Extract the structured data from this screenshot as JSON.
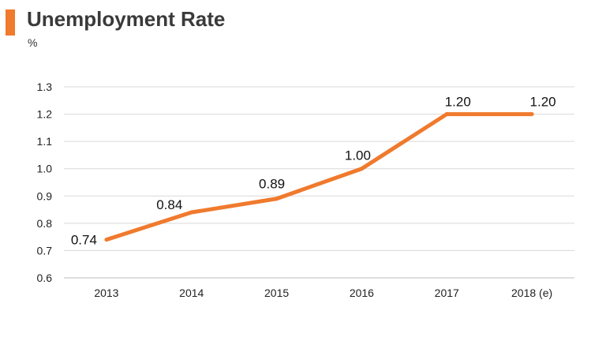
{
  "header": {
    "title": "Unemployment Rate",
    "unit": "%",
    "accent_color": "#f07a2d"
  },
  "chart_data": {
    "type": "line",
    "title": "Unemployment Rate",
    "ylabel": "%",
    "xlabel": "",
    "categories": [
      "2013",
      "2014",
      "2015",
      "2016",
      "2017",
      "2018 (e)"
    ],
    "series": [
      {
        "values": [
          0.74,
          0.84,
          0.89,
          1.0,
          1.2,
          1.2
        ],
        "labels": [
          "0.74",
          "0.84",
          "0.89",
          "1.00",
          "1.20",
          "1.20"
        ],
        "color": "#f07a2d"
      }
    ],
    "ylim": [
      0.6,
      1.3
    ],
    "yticks": [
      "0.6",
      "0.7",
      "0.8",
      "0.9",
      "1.0",
      "1.1",
      "1.2",
      "1.3"
    ],
    "grid": true,
    "gridline_color": "#d9d9d9",
    "legend": "none"
  }
}
